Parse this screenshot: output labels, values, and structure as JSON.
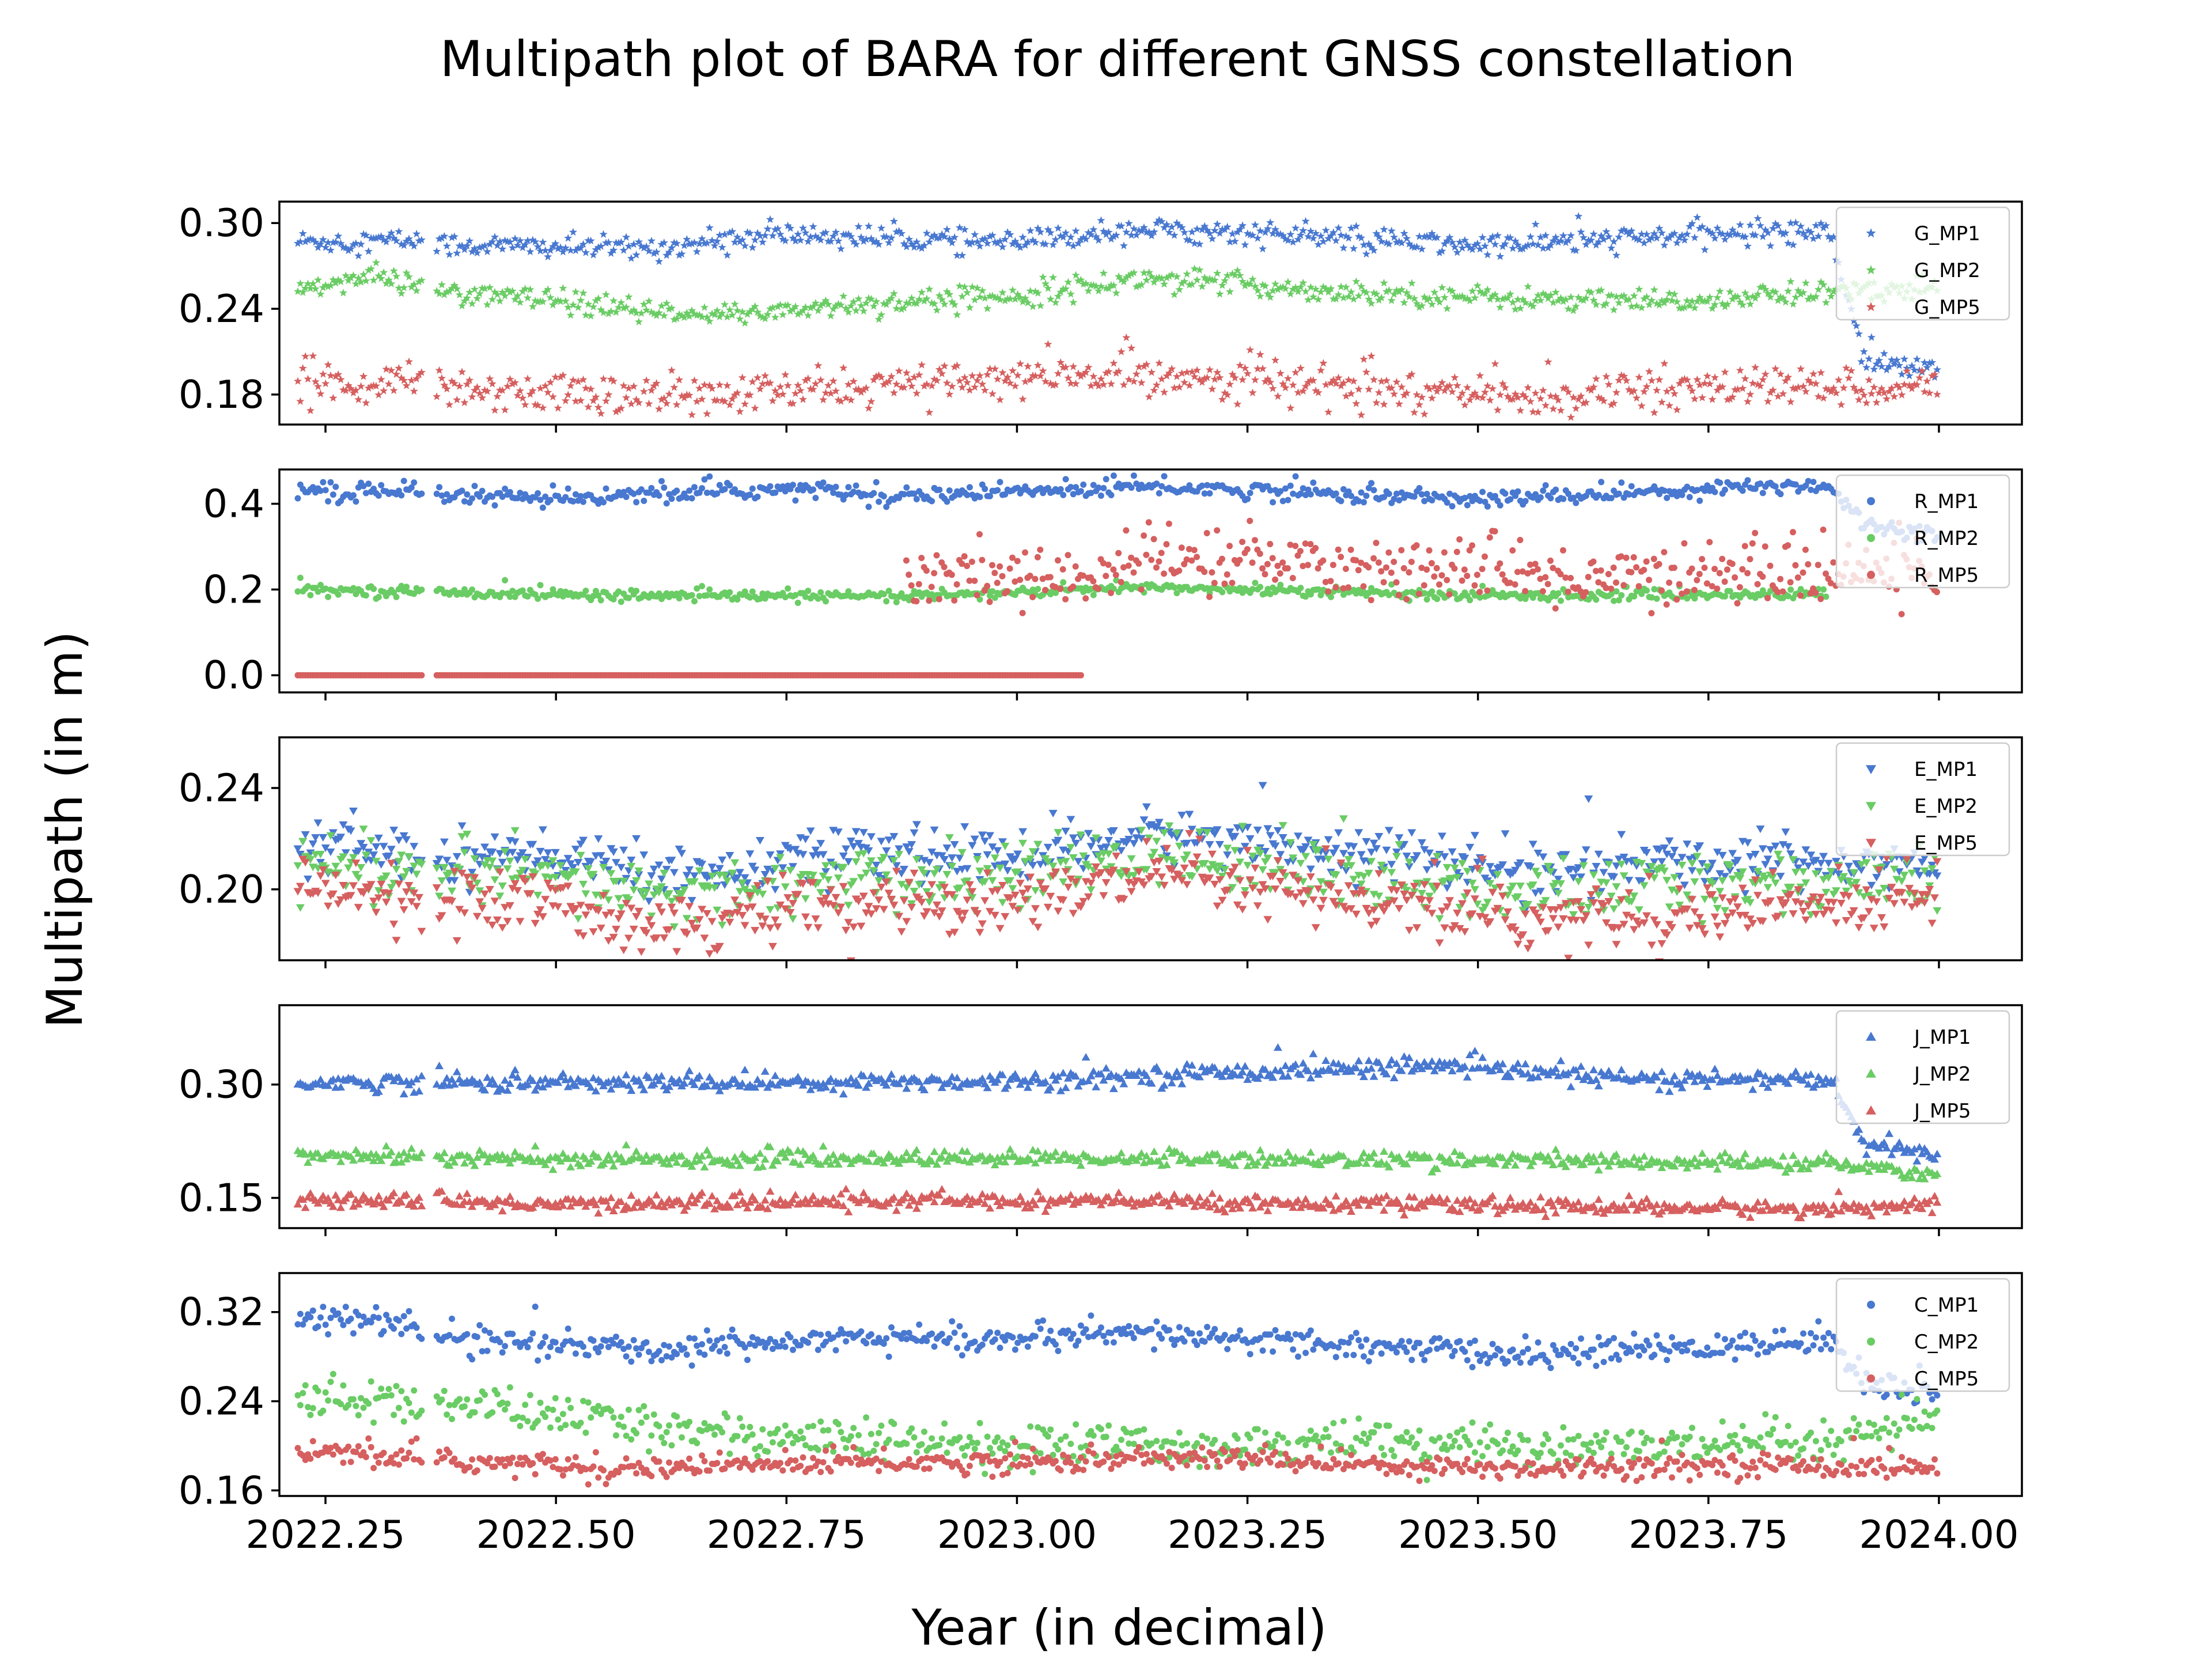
{
  "chart_data": {
    "type": "scatter",
    "title": "Multipath plot of BARA for different GNSS constellation",
    "xlabel": "Year (in decimal)",
    "ylabel": "Multipath (in m)",
    "xlim": [
      2022.2,
      2024.09
    ],
    "xticks": [
      "2022.25",
      "2022.50",
      "2022.75",
      "2023.00",
      "2023.25",
      "2023.50",
      "2023.75",
      "2024.00"
    ],
    "x_start": 2022.22,
    "x_end": 2024.0,
    "gap": [
      2022.355,
      2022.37
    ],
    "legend_loc": "upper right",
    "colors": {
      "MP1": "#4878d0",
      "MP2": "#6acc64",
      "MP5": "#d65f5f"
    },
    "panels": [
      {
        "constellation": "G",
        "marker": "star",
        "ylim": [
          0.159,
          0.315
        ],
        "yticks": [
          "0.30",
          "0.24",
          "0.18"
        ],
        "yticks_val": [
          0.3,
          0.24,
          0.18
        ],
        "series": [
          {
            "name": "G_MP1",
            "key": "MP1",
            "x": [
              2022.22,
              2022.35,
              2022.37,
              2022.6,
              2022.75,
              2023.0,
              2023.12,
              2023.25,
              2023.5,
              2023.75,
              2023.88,
              2023.92,
              2024.0
            ],
            "y": [
              0.287,
              0.288,
              0.285,
              0.282,
              0.292,
              0.286,
              0.296,
              0.293,
              0.284,
              0.292,
              0.296,
              0.205,
              0.195
            ],
            "noise": 0.004
          },
          {
            "name": "G_MP2",
            "key": "MP2",
            "x": [
              2022.22,
              2022.3,
              2022.35,
              2022.37,
              2022.5,
              2022.65,
              2022.8,
              2023.0,
              2023.15,
              2023.3,
              2023.5,
              2023.7,
              2023.88,
              2024.0
            ],
            "y": [
              0.255,
              0.262,
              0.258,
              0.253,
              0.245,
              0.234,
              0.242,
              0.25,
              0.262,
              0.254,
              0.248,
              0.244,
              0.252,
              0.255
            ],
            "noise": 0.004
          },
          {
            "name": "G_MP5",
            "key": "MP5",
            "x": [
              2022.22,
              2022.35,
              2022.37,
              2022.65,
              2022.9,
              2023.15,
              2023.3,
              2023.55,
              2023.75,
              2024.0
            ],
            "y": [
              0.19,
              0.187,
              0.185,
              0.178,
              0.188,
              0.195,
              0.187,
              0.178,
              0.185,
              0.186
            ],
            "noise": 0.007
          }
        ]
      },
      {
        "constellation": "R",
        "marker": "circle",
        "ylim": [
          -0.04,
          0.48
        ],
        "yticks": [
          "0.4",
          "0.2",
          "0.0"
        ],
        "yticks_val": [
          0.4,
          0.2,
          0.0
        ],
        "series": [
          {
            "name": "R_MP1",
            "key": "MP1",
            "x": [
              2022.22,
              2022.5,
              2022.75,
              2022.9,
              2023.15,
              2023.5,
              2023.8,
              2023.88,
              2023.92,
              2024.0
            ],
            "y": [
              0.43,
              0.41,
              0.435,
              0.42,
              0.44,
              0.41,
              0.44,
              0.445,
              0.35,
              0.33
            ],
            "noise": 0.01
          },
          {
            "name": "R_MP2",
            "key": "MP2",
            "x": [
              2022.22,
              2022.6,
              2022.9,
              2023.15,
              2023.5,
              2023.88
            ],
            "y": [
              0.2,
              0.185,
              0.185,
              0.205,
              0.185,
              0.19
            ],
            "noise": 0.006
          },
          {
            "name": "R_MP5",
            "key": "MP5",
            "x": [
              2022.22,
              2023.07
            ],
            "y": [
              0.0,
              0.0
            ],
            "noise": 0.0
          },
          {
            "name": "R_MP5",
            "key": "MP5",
            "x": [
              2022.88,
              2023.07,
              2023.15,
              2023.3,
              2023.6,
              2023.8,
              2024.0
            ],
            "y": [
              0.22,
              0.23,
              0.27,
              0.26,
              0.23,
              0.24,
              0.24
            ],
            "noise": 0.035
          }
        ]
      },
      {
        "constellation": "E",
        "marker": "triangle-down",
        "ylim": [
          0.172,
          0.26
        ],
        "yticks": [
          "0.24",
          "0.20"
        ],
        "yticks_val": [
          0.24,
          0.2
        ],
        "series": [
          {
            "name": "E_MP1",
            "key": "MP1",
            "x": [
              2022.22,
              2022.5,
              2022.65,
              2022.8,
              2023.0,
              2023.15,
              2023.3,
              2023.55,
              2023.8,
              2024.0
            ],
            "y": [
              0.217,
              0.212,
              0.206,
              0.213,
              0.213,
              0.222,
              0.218,
              0.207,
              0.212,
              0.21
            ],
            "noise": 0.005
          },
          {
            "name": "E_MP2",
            "key": "MP2",
            "x": [
              2022.22,
              2022.5,
              2022.65,
              2022.8,
              2023.0,
              2023.15,
              2023.3,
              2023.55,
              2023.8,
              2024.0
            ],
            "y": [
              0.21,
              0.203,
              0.197,
              0.203,
              0.205,
              0.214,
              0.208,
              0.198,
              0.203,
              0.203
            ],
            "noise": 0.006
          },
          {
            "name": "E_MP5",
            "key": "MP5",
            "x": [
              2022.22,
              2022.5,
              2022.65,
              2022.8,
              2023.0,
              2023.15,
              2023.3,
              2023.55,
              2023.8,
              2024.0
            ],
            "y": [
              0.2,
              0.193,
              0.187,
              0.193,
              0.196,
              0.205,
              0.198,
              0.188,
              0.192,
              0.196
            ],
            "noise": 0.006
          }
        ]
      },
      {
        "constellation": "J",
        "marker": "triangle-up",
        "ylim": [
          0.11,
          0.405
        ],
        "yticks": [
          "0.30",
          "0.15"
        ],
        "yticks_val": [
          0.3,
          0.15
        ],
        "series": [
          {
            "name": "J_MP1",
            "key": "MP1",
            "x": [
              2022.22,
              2022.5,
              2022.75,
              2023.0,
              2023.2,
              2023.45,
              2023.7,
              2023.88,
              2023.92,
              2024.0
            ],
            "y": [
              0.303,
              0.302,
              0.303,
              0.305,
              0.315,
              0.325,
              0.305,
              0.307,
              0.22,
              0.205
            ],
            "noise": 0.006
          },
          {
            "name": "J_MP2",
            "key": "MP2",
            "x": [
              2022.22,
              2022.5,
              2023.0,
              2023.5,
              2023.88,
              2024.0
            ],
            "y": [
              0.207,
              0.2,
              0.203,
              0.2,
              0.195,
              0.18
            ],
            "noise": 0.005
          },
          {
            "name": "J_MP5",
            "key": "MP5",
            "x": [
              2022.22,
              2022.5,
              2023.0,
              2023.5,
              2023.88,
              2024.0
            ],
            "y": [
              0.148,
              0.142,
              0.147,
              0.14,
              0.135,
              0.145
            ],
            "noise": 0.005
          }
        ]
      },
      {
        "constellation": "C",
        "marker": "circle",
        "ylim": [
          0.155,
          0.355
        ],
        "yticks": [
          "0.32",
          "0.24",
          "0.16"
        ],
        "yticks_val": [
          0.32,
          0.24,
          0.16
        ],
        "series": [
          {
            "name": "C_MP1",
            "key": "MP1",
            "x": [
              2022.22,
              2022.32,
              2022.37,
              2022.6,
              2022.8,
              2023.0,
              2023.15,
              2023.35,
              2023.55,
              2023.8,
              2023.88,
              2023.92,
              2024.0
            ],
            "y": [
              0.313,
              0.312,
              0.298,
              0.285,
              0.298,
              0.295,
              0.3,
              0.29,
              0.282,
              0.29,
              0.298,
              0.255,
              0.248
            ],
            "noise": 0.006
          },
          {
            "name": "C_MP2",
            "key": "MP2",
            "x": [
              2022.22,
              2022.35,
              2022.37,
              2022.6,
              2022.8,
              2023.0,
              2023.3,
              2023.6,
              2023.88,
              2024.0
            ],
            "y": [
              0.245,
              0.238,
              0.24,
              0.218,
              0.205,
              0.2,
              0.203,
              0.2,
              0.2,
              0.225
            ],
            "noise": 0.009
          },
          {
            "name": "C_MP5",
            "key": "MP5",
            "x": [
              2022.22,
              2022.37,
              2022.6,
              2022.8,
              2023.0,
              2023.2,
              2023.5,
              2023.8,
              2024.0
            ],
            "y": [
              0.195,
              0.187,
              0.18,
              0.185,
              0.185,
              0.19,
              0.18,
              0.183,
              0.18
            ],
            "noise": 0.005
          }
        ]
      }
    ]
  }
}
